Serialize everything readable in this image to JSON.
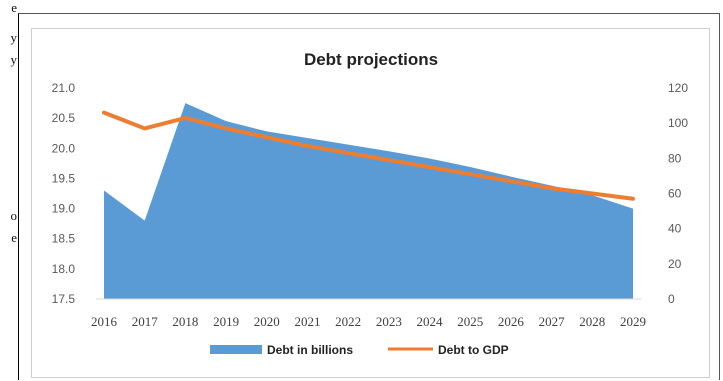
{
  "page_fragment_letters": [
    "e",
    "y",
    "y",
    "o",
    "e"
  ],
  "chart_data": {
    "type": "area+line",
    "title": "Debt projections",
    "categories": [
      "2016",
      "2017",
      "2018",
      "2019",
      "2020",
      "2021",
      "2022",
      "2023",
      "2024",
      "2025",
      "2026",
      "2027",
      "2028",
      "2029"
    ],
    "series": [
      {
        "name": "Debt in billions",
        "kind": "area",
        "axis": "left",
        "color": "#5b9bd5",
        "values": [
          19.3,
          18.8,
          20.75,
          20.45,
          20.28,
          20.17,
          20.06,
          19.95,
          19.83,
          19.69,
          19.53,
          19.38,
          19.22,
          19.0
        ]
      },
      {
        "name": "Debt to GDP",
        "kind": "line",
        "axis": "right",
        "color": "#ed7d31",
        "values": [
          106,
          97,
          103,
          97,
          92,
          87,
          83,
          79,
          75,
          71,
          67,
          63,
          60,
          57
        ]
      }
    ],
    "y_left": {
      "min": 17.5,
      "max": 21.0,
      "ticks": [
        "17.5",
        "18.0",
        "18.5",
        "19.0",
        "19.5",
        "20.0",
        "20.5",
        "21.0"
      ]
    },
    "y_right": {
      "min": 0,
      "max": 120,
      "ticks": [
        "0",
        "20",
        "40",
        "60",
        "80",
        "100",
        "120"
      ]
    },
    "legend": {
      "position": "bottom",
      "labels": [
        "Debt in billions",
        "Debt to GDP"
      ]
    },
    "grid": false
  }
}
